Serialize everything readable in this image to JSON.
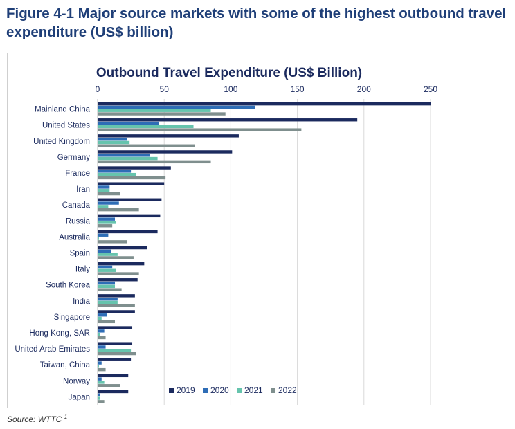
{
  "figure": {
    "title": "Figure 4-1 Major source markets with some of the highest outbound travel expenditure (US$ billion)",
    "source_text": "Source: WTTC",
    "source_footnote": "1"
  },
  "chart_data": {
    "type": "bar",
    "orientation": "horizontal",
    "title": "Outbound Travel Expenditure (US$ Billion)",
    "xlabel": "",
    "ylabel": "",
    "xlim": [
      0,
      250
    ],
    "xticks": [
      0,
      50,
      100,
      150,
      200,
      250
    ],
    "grid": true,
    "legend_position": "bottom-right",
    "categories": [
      "Mainland China",
      "United States",
      "United Kingdom",
      "Germany",
      "France",
      "Iran",
      "Canada",
      "Russia",
      "Australia",
      "Spain",
      "Italy",
      "South Korea",
      "India",
      "Singapore",
      "Hong Kong, SAR",
      "United Arab Emirates",
      "Taiwan, China",
      "Norway",
      "Japan"
    ],
    "series": [
      {
        "name": "2019",
        "color": "#1b2a5e",
        "values": [
          250,
          195,
          106,
          101,
          55,
          50,
          48,
          47,
          45,
          37,
          35,
          30,
          28,
          28,
          26,
          26,
          25,
          23,
          23
        ]
      },
      {
        "name": "2020",
        "color": "#2e6db6",
        "values": [
          118,
          46,
          22,
          39,
          25,
          9,
          16,
          13,
          8,
          10,
          11,
          13,
          15,
          7,
          5,
          6,
          3,
          3,
          2
        ]
      },
      {
        "name": "2021",
        "color": "#66c4ad",
        "values": [
          85,
          72,
          24,
          45,
          29,
          9,
          8,
          14,
          1,
          15,
          14,
          13,
          15,
          3,
          2,
          25,
          1,
          5,
          2
        ]
      },
      {
        "name": "2022",
        "color": "#7f8f8e",
        "values": [
          96,
          153,
          73,
          85,
          51,
          17,
          31,
          11,
          22,
          27,
          31,
          18,
          28,
          13,
          6,
          29,
          6,
          17,
          5
        ]
      }
    ]
  }
}
